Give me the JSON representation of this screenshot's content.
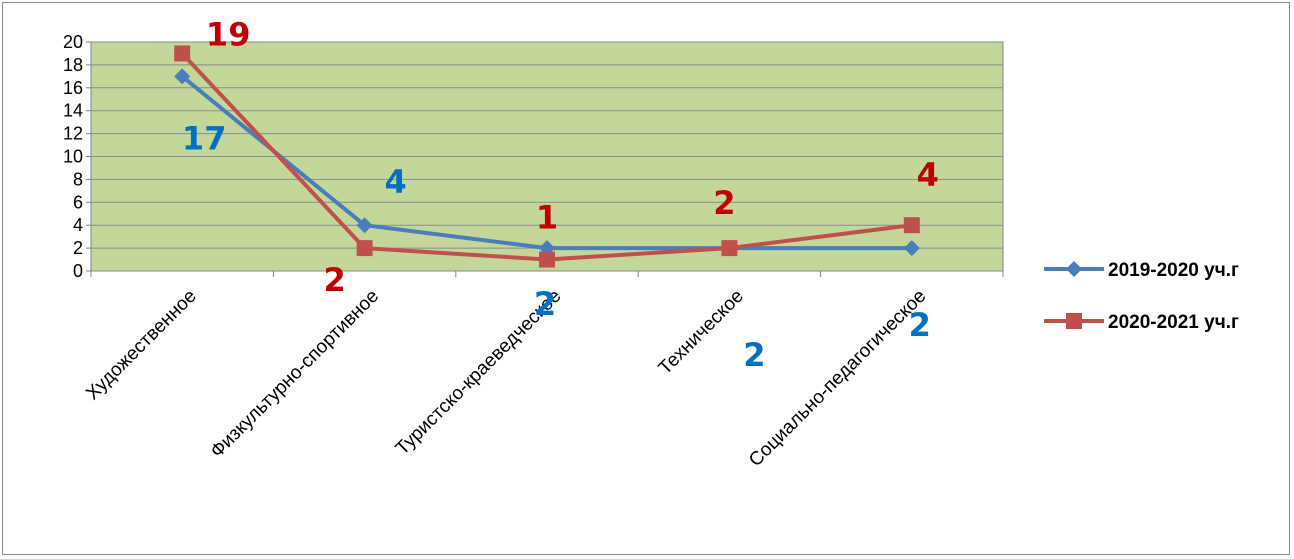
{
  "chart_data": {
    "type": "line",
    "categories": [
      "Художественное",
      "Физкультурно-спортивное",
      "Туристско-краеведческое",
      "Техническое",
      "Социально-педагогическое"
    ],
    "series": [
      {
        "name": "2019-2020 уч.г",
        "values": [
          17,
          4,
          2,
          2,
          2
        ],
        "color": "#4a7ebb",
        "label_color": "#0070c0",
        "marker": "diamond",
        "data_labels": [
          "17",
          "4",
          "2",
          "2",
          "2"
        ]
      },
      {
        "name": "2020-2021 уч.г",
        "values": [
          19,
          2,
          1,
          2,
          4
        ],
        "color": "#c0504d",
        "label_color": "#c00000",
        "marker": "square",
        "data_labels": [
          "19",
          "2",
          "1",
          "2",
          "4"
        ]
      }
    ],
    "y_ticks": [
      "0",
      "2",
      "4",
      "6",
      "8",
      "10",
      "12",
      "14",
      "16",
      "18",
      "20"
    ],
    "ylim": [
      0,
      20
    ],
    "grid": true,
    "plot_background": "#c4d79b",
    "legend_position": "right"
  }
}
